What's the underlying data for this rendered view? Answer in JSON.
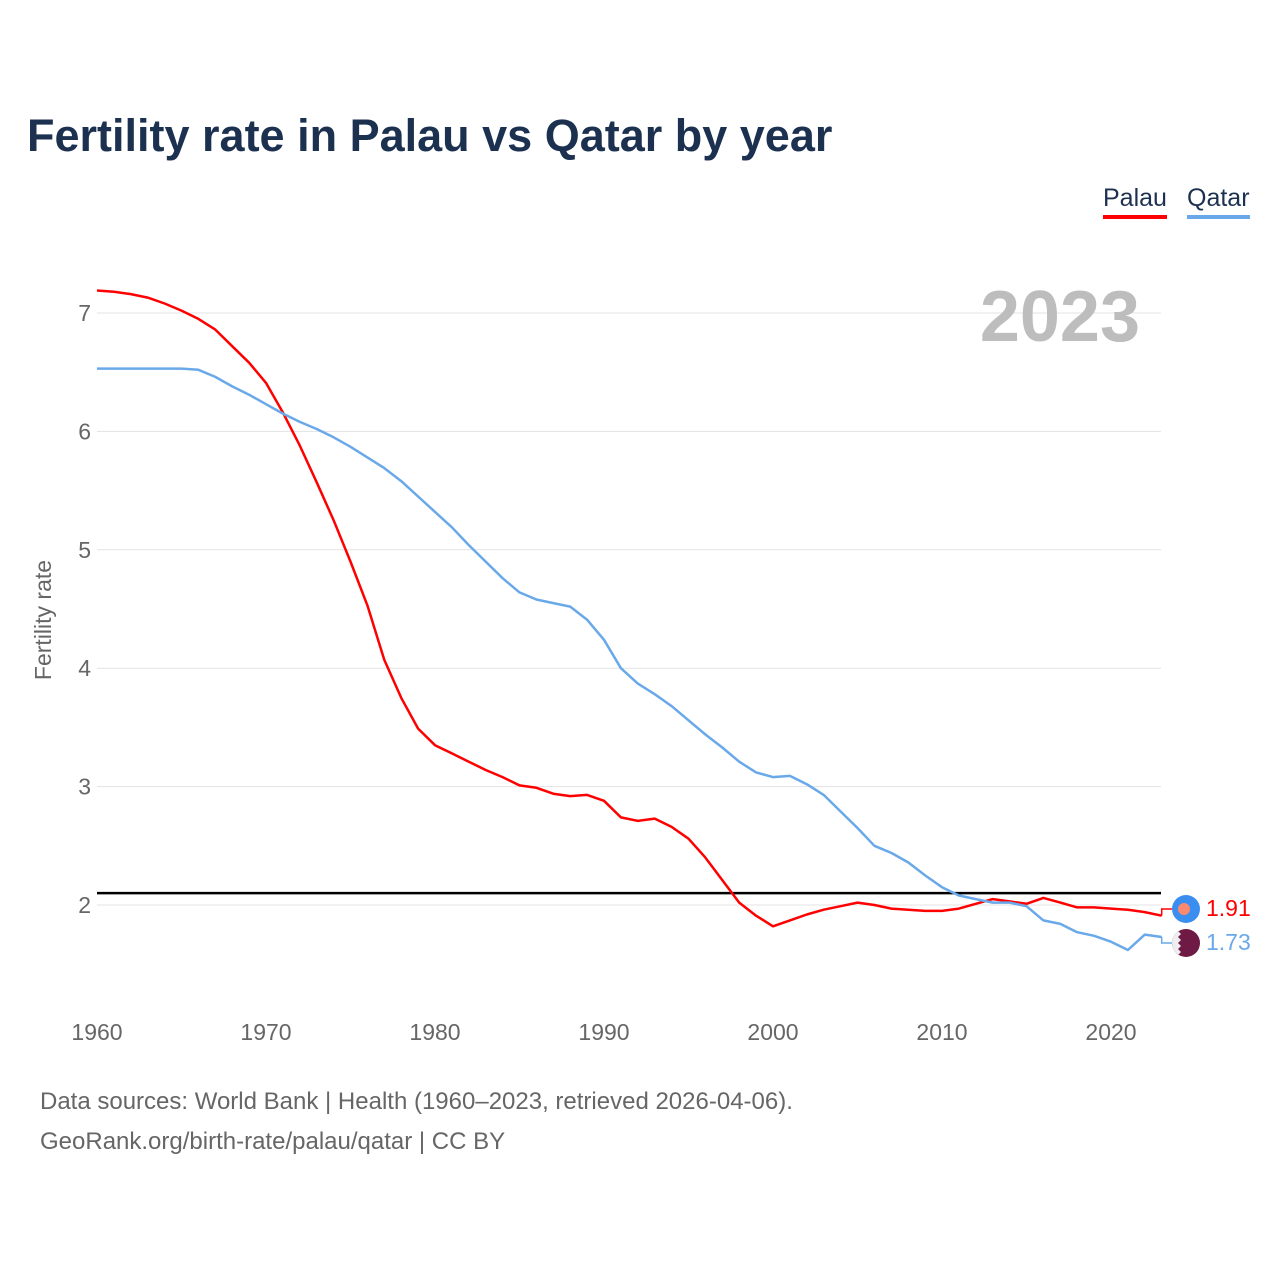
{
  "title": "Fertility rate in Palau vs Qatar by year",
  "footer": {
    "line1": "Data sources: World Bank | Health (1960–2023, retrieved 2026-04-06).",
    "line2": "GeoRank.org/birth-rate/palau/qatar | CC BY"
  },
  "chart_data": {
    "type": "line",
    "title": "Fertility rate in Palau vs Qatar by year",
    "xlabel": "",
    "ylabel": "Fertility rate",
    "year_label": "2023",
    "xlim": [
      1960,
      2023
    ],
    "ylim": [
      1.3,
      7.3
    ],
    "xticks": [
      "1960",
      "1970",
      "1980",
      "1990",
      "2000",
      "2010",
      "2020"
    ],
    "yticks": [
      "2",
      "3",
      "4",
      "5",
      "6",
      "7"
    ],
    "grid": true,
    "legend_position": "top-right",
    "reference_line": 2.1,
    "x": [
      1960,
      1961,
      1962,
      1963,
      1964,
      1965,
      1966,
      1967,
      1968,
      1969,
      1970,
      1971,
      1972,
      1973,
      1974,
      1975,
      1976,
      1977,
      1978,
      1979,
      1980,
      1981,
      1982,
      1983,
      1984,
      1985,
      1986,
      1987,
      1988,
      1989,
      1990,
      1991,
      1992,
      1993,
      1994,
      1995,
      1996,
      1997,
      1998,
      1999,
      2000,
      2001,
      2002,
      2003,
      2004,
      2005,
      2006,
      2007,
      2008,
      2009,
      2010,
      2011,
      2012,
      2013,
      2014,
      2015,
      2016,
      2017,
      2018,
      2019,
      2020,
      2021,
      2022,
      2023
    ],
    "series": [
      {
        "name": "Palau",
        "color": "#ff0000",
        "end_label": "1.91",
        "values": [
          7.19,
          7.18,
          7.16,
          7.13,
          7.08,
          7.02,
          6.95,
          6.86,
          6.72,
          6.58,
          6.41,
          6.16,
          5.88,
          5.57,
          5.25,
          4.9,
          4.53,
          4.07,
          3.75,
          3.49,
          3.35,
          3.28,
          3.21,
          3.14,
          3.08,
          3.01,
          2.99,
          2.94,
          2.92,
          2.93,
          2.88,
          2.74,
          2.71,
          2.73,
          2.66,
          2.56,
          2.4,
          2.21,
          2.02,
          1.91,
          1.82,
          1.87,
          1.92,
          1.96,
          1.99,
          2.02,
          2.0,
          1.97,
          1.96,
          1.95,
          1.95,
          1.97,
          2.01,
          2.05,
          2.03,
          2.01,
          2.06,
          2.02,
          1.98,
          1.98,
          1.97,
          1.96,
          1.94,
          1.91
        ]
      },
      {
        "name": "Qatar",
        "color": "#6aa9e9",
        "end_label": "1.73",
        "values": [
          6.53,
          6.53,
          6.53,
          6.53,
          6.53,
          6.53,
          6.52,
          6.46,
          6.38,
          6.31,
          6.23,
          6.15,
          6.08,
          6.02,
          5.95,
          5.87,
          5.78,
          5.69,
          5.58,
          5.45,
          5.32,
          5.19,
          5.04,
          4.9,
          4.76,
          4.64,
          4.58,
          4.55,
          4.52,
          4.41,
          4.24,
          4.0,
          3.87,
          3.78,
          3.68,
          3.56,
          3.44,
          3.33,
          3.21,
          3.12,
          3.08,
          3.09,
          3.02,
          2.93,
          2.79,
          2.65,
          2.5,
          2.44,
          2.36,
          2.25,
          2.15,
          2.08,
          2.05,
          2.02,
          2.02,
          1.99,
          1.87,
          1.84,
          1.77,
          1.74,
          1.69,
          1.62,
          1.75,
          1.73
        ]
      }
    ]
  }
}
